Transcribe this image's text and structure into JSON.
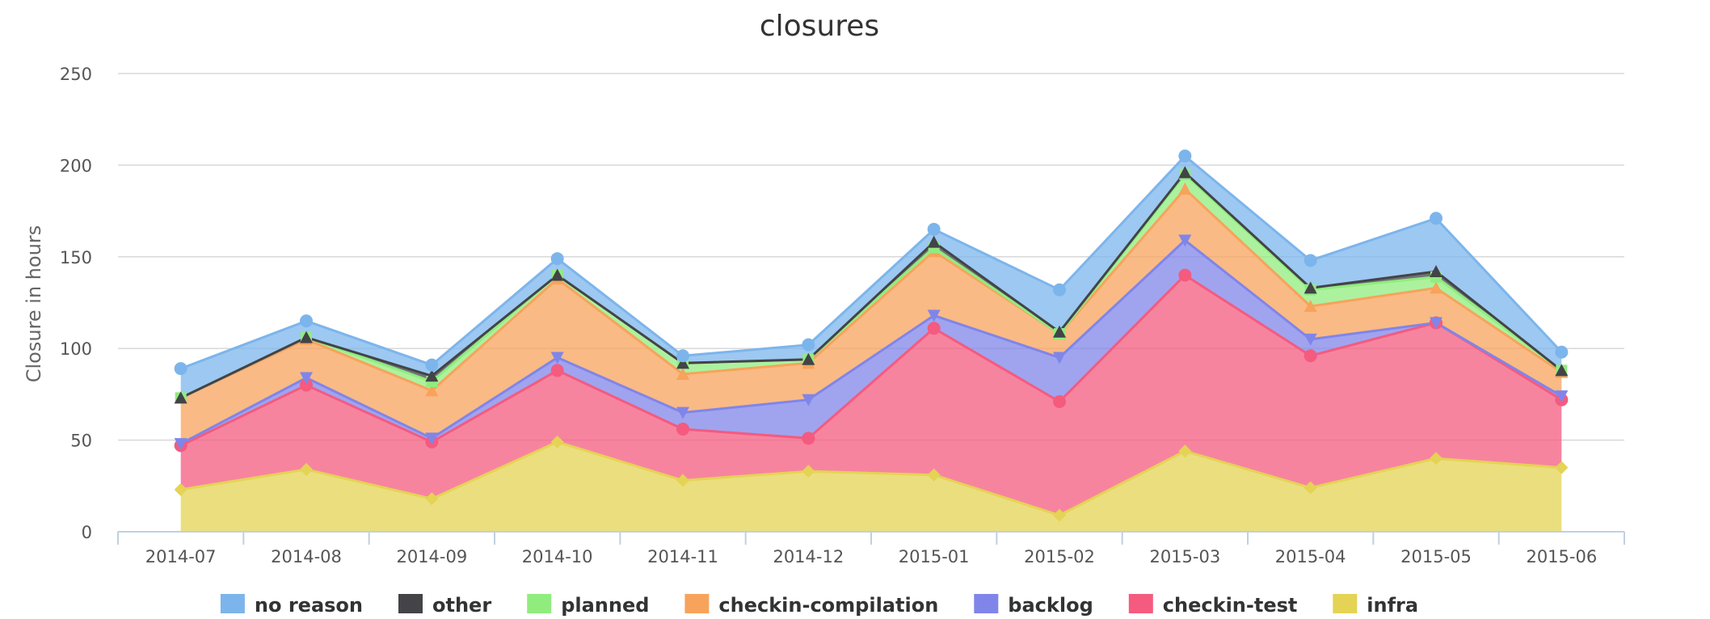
{
  "chart_data": {
    "type": "area",
    "stacked": true,
    "title": "closures",
    "xlabel": "",
    "ylabel": "Closure in hours",
    "ylim": [
      0,
      250
    ],
    "yticks": [
      0,
      50,
      100,
      150,
      200,
      250
    ],
    "grid": true,
    "legend_position": "bottom",
    "categories": [
      "2014-07",
      "2014-08",
      "2014-09",
      "2014-10",
      "2014-11",
      "2014-12",
      "2015-01",
      "2015-02",
      "2015-03",
      "2015-04",
      "2015-05",
      "2015-06"
    ],
    "series": [
      {
        "name": "infra",
        "color": "#e4d354",
        "marker": "diamond",
        "values": [
          23,
          34,
          18,
          49,
          28,
          33,
          31,
          9,
          44,
          24,
          40,
          35
        ]
      },
      {
        "name": "checkin-test",
        "color": "#f45b7f",
        "marker": "circle",
        "values": [
          24,
          46,
          31,
          39,
          28,
          18,
          80,
          62,
          96,
          72,
          74,
          37
        ]
      },
      {
        "name": "backlog",
        "color": "#8085e9",
        "marker": "triangle-down",
        "values": [
          1,
          4,
          2,
          7,
          9,
          21,
          7,
          24,
          19,
          9,
          0,
          2
        ]
      },
      {
        "name": "checkin-compilation",
        "color": "#f7a35c",
        "marker": "triangle",
        "values": [
          25,
          21,
          26,
          43,
          21,
          20,
          35,
          13,
          28,
          18,
          19,
          13
        ]
      },
      {
        "name": "planned",
        "color": "#90ed7d",
        "marker": "square",
        "values": [
          0,
          1,
          5,
          2,
          6,
          2,
          2,
          0,
          8,
          9,
          6,
          1
        ]
      },
      {
        "name": "other",
        "color": "#434348",
        "marker": "triangle",
        "values": [
          0,
          0,
          3,
          0,
          0,
          0,
          3,
          1,
          1,
          1,
          3,
          0
        ]
      },
      {
        "name": "no reason",
        "color": "#7cb5ec",
        "marker": "circle",
        "values": [
          16,
          9,
          6,
          9,
          4,
          8,
          7,
          23,
          9,
          15,
          29,
          10
        ]
      }
    ],
    "legend_order": [
      "no reason",
      "other",
      "planned",
      "checkin-compilation",
      "backlog",
      "checkin-test",
      "infra"
    ]
  }
}
